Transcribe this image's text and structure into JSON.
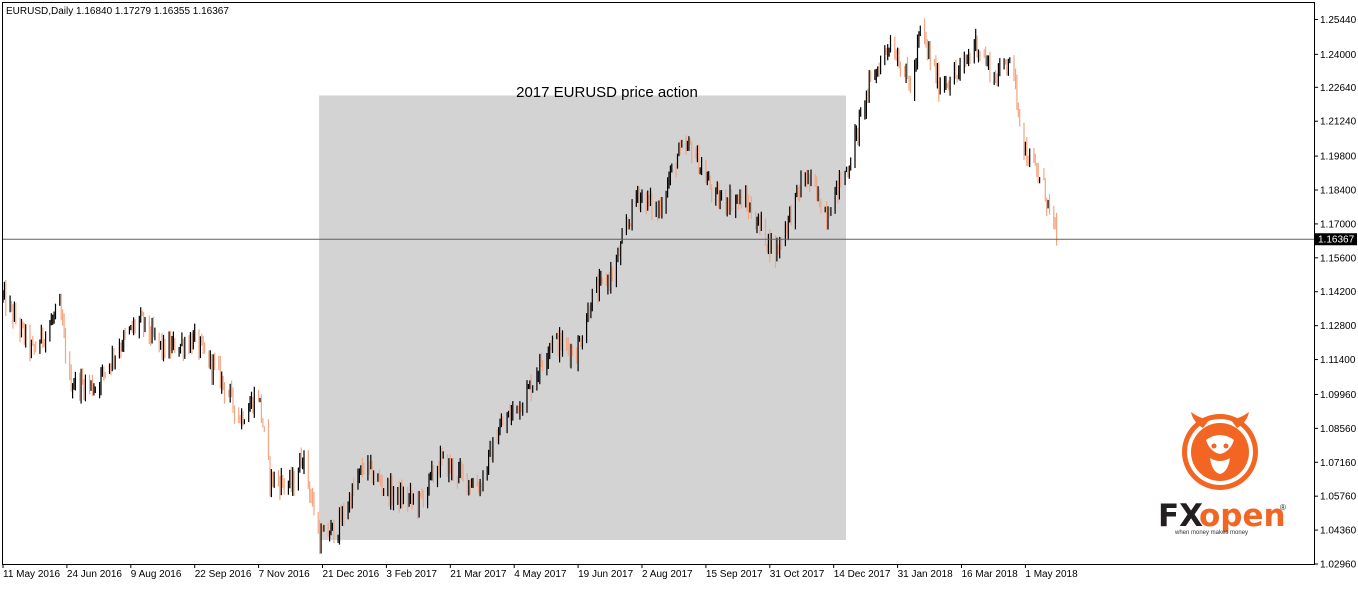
{
  "chart_data": {
    "type": "candlestick",
    "header": {
      "symbol": "EURUSD,Daily",
      "ohlc": "1.16840 1.17279 1.16355 1.16367"
    },
    "annotation": "2017 EURUSD price action",
    "highlight_range": {
      "from": "21 Dec 2016",
      "to": "20 Dec 2017"
    },
    "current_price": 1.16367,
    "current_price_label": "1.16367",
    "ylim": [
      1.0296,
      1.2612
    ],
    "y_ticks": [
      "1.25440",
      "1.24000",
      "1.22640",
      "1.21240",
      "1.19800",
      "1.18400",
      "1.17000",
      "1.15600",
      "1.14200",
      "1.12800",
      "1.11400",
      "1.09960",
      "1.08560",
      "1.07160",
      "1.05760",
      "1.04360",
      "1.02960"
    ],
    "x_ticks": [
      "11 May 2016",
      "24 Jun 2016",
      "9 Aug 2016",
      "22 Sep 2016",
      "7 Nov 2016",
      "21 Dec 2016",
      "3 Feb 2017",
      "21 Mar 2017",
      "4 May 2017",
      "19 Jun 2017",
      "2 Aug 2017",
      "15 Sep 2017",
      "31 Oct 2017",
      "14 Dec 2017",
      "31 Jan 2018",
      "16 Mar 2018",
      "1 May 2018"
    ],
    "series": [
      {
        "name": "",
        "bull_color": "#000000",
        "bear_color": "#f4a582",
        "keypoints": [
          {
            "date": "11 May 2016",
            "close": 1.14
          },
          {
            "date": "1 Jun 2016",
            "close": 1.117
          },
          {
            "date": "20 Jun 2016",
            "close": 1.135
          },
          {
            "date": "27 Jun 2016",
            "close": 1.105
          },
          {
            "date": "15 Jul 2016",
            "close": 1.103
          },
          {
            "date": "1 Aug 2016",
            "close": 1.12
          },
          {
            "date": "15 Aug 2016",
            "close": 1.13
          },
          {
            "date": "1 Sep 2016",
            "close": 1.118
          },
          {
            "date": "22 Sep 2016",
            "close": 1.122
          },
          {
            "date": "10 Oct 2016",
            "close": 1.108
          },
          {
            "date": "25 Oct 2016",
            "close": 1.09
          },
          {
            "date": "7 Nov 2016",
            "close": 1.1
          },
          {
            "date": "15 Nov 2016",
            "close": 1.065
          },
          {
            "date": "1 Dec 2016",
            "close": 1.062
          },
          {
            "date": "8 Dec 2016",
            "close": 1.075
          },
          {
            "date": "20 Dec 2016",
            "close": 1.04
          },
          {
            "date": "2 Jan 2017",
            "close": 1.045
          },
          {
            "date": "20 Jan 2017",
            "close": 1.07
          },
          {
            "date": "10 Feb 2017",
            "close": 1.058
          },
          {
            "date": "28 Feb 2017",
            "close": 1.055
          },
          {
            "date": "15 Mar 2017",
            "close": 1.072
          },
          {
            "date": "1 Apr 2017",
            "close": 1.065
          },
          {
            "date": "12 Apr 2017",
            "close": 1.062
          },
          {
            "date": "25 Apr 2017",
            "close": 1.085
          },
          {
            "date": "15 May 2017",
            "close": 1.1
          },
          {
            "date": "1 Jun 2017",
            "close": 1.122
          },
          {
            "date": "19 Jun 2017",
            "close": 1.117
          },
          {
            "date": "30 Jun 2017",
            "close": 1.14
          },
          {
            "date": "15 Jul 2017",
            "close": 1.15
          },
          {
            "date": "1 Aug 2017",
            "close": 1.183
          },
          {
            "date": "15 Aug 2017",
            "close": 1.175
          },
          {
            "date": "29 Aug 2017",
            "close": 1.198
          },
          {
            "date": "8 Sep 2017",
            "close": 1.202
          },
          {
            "date": "25 Sep 2017",
            "close": 1.18
          },
          {
            "date": "15 Oct 2017",
            "close": 1.18
          },
          {
            "date": "6 Nov 2017",
            "close": 1.158
          },
          {
            "date": "27 Nov 2017",
            "close": 1.19
          },
          {
            "date": "12 Dec 2017",
            "close": 1.175
          },
          {
            "date": "28 Dec 2017",
            "close": 1.195
          },
          {
            "date": "10 Jan 2018",
            "close": 1.225
          },
          {
            "date": "25 Jan 2018",
            "close": 1.245
          },
          {
            "date": "31 Jan 2018",
            "close": 1.24
          },
          {
            "date": "10 Feb 2018",
            "close": 1.225
          },
          {
            "date": "16 Feb 2018",
            "close": 1.25
          },
          {
            "date": "1 Mar 2018",
            "close": 1.228
          },
          {
            "date": "16 Mar 2018",
            "close": 1.232
          },
          {
            "date": "27 Mar 2018",
            "close": 1.245
          },
          {
            "date": "10 Apr 2018",
            "close": 1.23
          },
          {
            "date": "20 Apr 2018",
            "close": 1.24
          },
          {
            "date": "1 May 2018",
            "close": 1.2
          },
          {
            "date": "14 May 2018",
            "close": 1.185
          },
          {
            "date": "23 May 2018",
            "close": 1.164
          }
        ]
      }
    ]
  },
  "logo": {
    "text_fx": "FX",
    "text_open": "open",
    "registered": "®",
    "tagline": "when money makes money"
  },
  "colors": {
    "bull": "#000000",
    "bear": "#f4a582",
    "highlight": "#d3d3d3",
    "price_line": "#606060",
    "price_tag_bg": "#000000",
    "logo_orange": "#f26522",
    "logo_dark": "#231f20"
  }
}
